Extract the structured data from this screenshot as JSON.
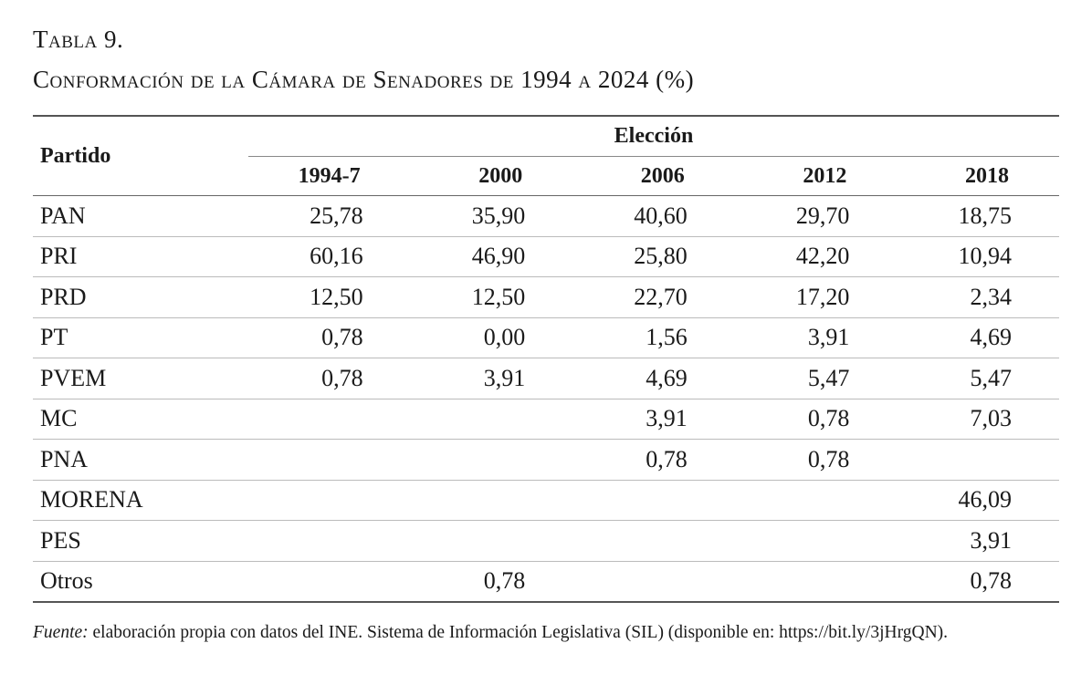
{
  "title": {
    "label": "Tabla 9.",
    "caption": "Conformación de la Cámara de Senadores de 1994 a 2024 (%)"
  },
  "table": {
    "party_header": "Partido",
    "group_header": "Elección",
    "columns": [
      "1994-7",
      "2000",
      "2006",
      "2012",
      "2018"
    ],
    "rows": [
      {
        "party": "PAN",
        "values": [
          "25,78",
          "35,90",
          "40,60",
          "29,70",
          "18,75"
        ]
      },
      {
        "party": "PRI",
        "values": [
          "60,16",
          "46,90",
          "25,80",
          "42,20",
          "10,94"
        ]
      },
      {
        "party": "PRD",
        "values": [
          "12,50",
          "12,50",
          "22,70",
          "17,20",
          "2,34"
        ]
      },
      {
        "party": "PT",
        "values": [
          "0,78",
          "0,00",
          "1,56",
          "3,91",
          "4,69"
        ]
      },
      {
        "party": "PVEM",
        "values": [
          "0,78",
          "3,91",
          "4,69",
          "5,47",
          "5,47"
        ]
      },
      {
        "party": "MC",
        "values": [
          "",
          "",
          "3,91",
          "0,78",
          "7,03"
        ]
      },
      {
        "party": "PNA",
        "values": [
          "",
          "",
          "0,78",
          "0,78",
          ""
        ]
      },
      {
        "party": "MORENA",
        "values": [
          "",
          "",
          "",
          "",
          "46,09"
        ]
      },
      {
        "party": "PES",
        "values": [
          "",
          "",
          "",
          "",
          "3,91"
        ]
      },
      {
        "party": "Otros",
        "values": [
          "",
          "0,78",
          "",
          "",
          "0,78"
        ]
      }
    ]
  },
  "source": {
    "label": "Fuente:",
    "text": " elaboración propia con datos del INE. Sistema de Información Legislativa (SIL) (disponible en: https://bit.ly/3jHrgQN)."
  }
}
